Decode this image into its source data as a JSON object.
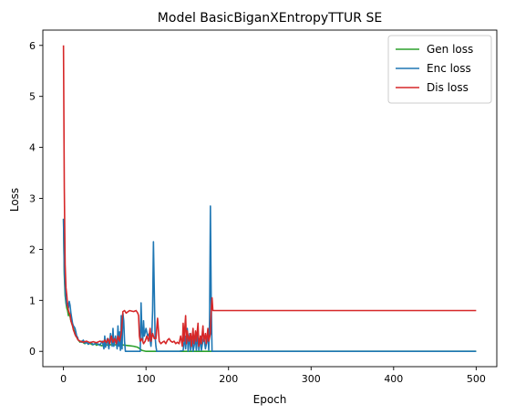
{
  "chart_data": {
    "type": "line",
    "title": "Model BasicBiganXEntropyTTUR SE",
    "xlabel": "Epoch",
    "ylabel": "Loss",
    "xlim": [
      -25,
      525
    ],
    "ylim": [
      -0.3,
      6.3
    ],
    "xticks": [
      0,
      100,
      200,
      300,
      400,
      500
    ],
    "yticks": [
      0,
      1,
      2,
      3,
      4,
      5,
      6
    ],
    "grid": false,
    "legend_position": "top-right",
    "series": [
      {
        "name": "Gen loss",
        "color": "#2ca02c",
        "points": [
          [
            0,
            2.6
          ],
          [
            1,
            1.5
          ],
          [
            2,
            1.1
          ],
          [
            3,
            0.95
          ],
          [
            4,
            0.85
          ],
          [
            5,
            0.8
          ],
          [
            6,
            0.7
          ],
          [
            7,
            0.75
          ],
          [
            8,
            0.68
          ],
          [
            9,
            0.6
          ],
          [
            10,
            0.55
          ],
          [
            11,
            0.5
          ],
          [
            12,
            0.45
          ],
          [
            13,
            0.4
          ],
          [
            14,
            0.35
          ],
          [
            15,
            0.3
          ],
          [
            16,
            0.28
          ],
          [
            17,
            0.25
          ],
          [
            18,
            0.22
          ],
          [
            19,
            0.2
          ],
          [
            20,
            0.18
          ],
          [
            22,
            0.2
          ],
          [
            24,
            0.17
          ],
          [
            26,
            0.15
          ],
          [
            28,
            0.18
          ],
          [
            30,
            0.14
          ],
          [
            32,
            0.16
          ],
          [
            35,
            0.13
          ],
          [
            38,
            0.15
          ],
          [
            40,
            0.12
          ],
          [
            43,
            0.14
          ],
          [
            46,
            0.11
          ],
          [
            50,
            0.13
          ],
          [
            55,
            0.12
          ],
          [
            60,
            0.14
          ],
          [
            65,
            0.12
          ],
          [
            70,
            0.13
          ],
          [
            75,
            0.12
          ],
          [
            80,
            0.11
          ],
          [
            85,
            0.1
          ],
          [
            90,
            0.08
          ],
          [
            95,
            0.02
          ],
          [
            100,
            0.0
          ],
          [
            110,
            0.0
          ],
          [
            120,
            0.0
          ],
          [
            130,
            0.0
          ],
          [
            140,
            0.0
          ],
          [
            150,
            0.0
          ],
          [
            160,
            0.0
          ],
          [
            170,
            0.0
          ],
          [
            180,
            0.0
          ],
          [
            250,
            0.0
          ],
          [
            350,
            0.0
          ],
          [
            450,
            0.0
          ],
          [
            500,
            0.0
          ]
        ]
      },
      {
        "name": "Enc loss",
        "color": "#1f77b4",
        "points": [
          [
            0,
            2.6
          ],
          [
            1,
            1.6
          ],
          [
            2,
            1.2
          ],
          [
            3,
            1.0
          ],
          [
            4,
            0.9
          ],
          [
            5,
            0.95
          ],
          [
            6,
            0.85
          ],
          [
            7,
            0.98
          ],
          [
            8,
            0.9
          ],
          [
            9,
            0.75
          ],
          [
            10,
            0.65
          ],
          [
            11,
            0.55
          ],
          [
            12,
            0.5
          ],
          [
            13,
            0.48
          ],
          [
            14,
            0.45
          ],
          [
            15,
            0.38
          ],
          [
            16,
            0.3
          ],
          [
            17,
            0.28
          ],
          [
            18,
            0.22
          ],
          [
            20,
            0.2
          ],
          [
            22,
            0.18
          ],
          [
            24,
            0.22
          ],
          [
            26,
            0.16
          ],
          [
            28,
            0.18
          ],
          [
            30,
            0.14
          ],
          [
            33,
            0.18
          ],
          [
            36,
            0.13
          ],
          [
            40,
            0.16
          ],
          [
            44,
            0.12
          ],
          [
            47,
            0.2
          ],
          [
            49,
            0.05
          ],
          [
            50,
            0.3
          ],
          [
            51,
            0.08
          ],
          [
            53,
            0.25
          ],
          [
            55,
            0.05
          ],
          [
            57,
            0.35
          ],
          [
            59,
            0.1
          ],
          [
            60,
            0.45
          ],
          [
            61,
            0.1
          ],
          [
            63,
            0.3
          ],
          [
            65,
            0.05
          ],
          [
            66,
            0.5
          ],
          [
            67,
            0.1
          ],
          [
            68,
            0.38
          ],
          [
            69,
            0.02
          ],
          [
            70,
            0.7
          ],
          [
            71,
            0.05
          ],
          [
            72,
            0.75
          ],
          [
            73,
            0.6
          ],
          [
            74,
            0.2
          ],
          [
            75,
            0.0
          ],
          [
            80,
            0.0
          ],
          [
            85,
            0.0
          ],
          [
            90,
            0.0
          ],
          [
            93,
            0.0
          ],
          [
            94,
            0.95
          ],
          [
            95,
            0.4
          ],
          [
            96,
            0.2
          ],
          [
            97,
            0.6
          ],
          [
            98,
            0.3
          ],
          [
            100,
            0.45
          ],
          [
            102,
            0.3
          ],
          [
            104,
            0.35
          ],
          [
            106,
            0.1
          ],
          [
            107,
            0.3
          ],
          [
            108,
            0.8
          ],
          [
            109,
            2.15
          ],
          [
            110,
            1.2
          ],
          [
            111,
            0.3
          ],
          [
            112,
            0.1
          ],
          [
            113,
            0.0
          ],
          [
            120,
            0.0
          ],
          [
            130,
            0.0
          ],
          [
            140,
            0.0
          ],
          [
            145,
            0.02
          ],
          [
            147,
            0.3
          ],
          [
            148,
            0.05
          ],
          [
            150,
            0.45
          ],
          [
            151,
            0.0
          ],
          [
            153,
            0.35
          ],
          [
            154,
            0.02
          ],
          [
            156,
            0.3
          ],
          [
            157,
            0.0
          ],
          [
            160,
            0.25
          ],
          [
            161,
            0.02
          ],
          [
            163,
            0.35
          ],
          [
            164,
            0.02
          ],
          [
            166,
            0.3
          ],
          [
            167,
            0.02
          ],
          [
            170,
            0.3
          ],
          [
            172,
            0.05
          ],
          [
            175,
            0.3
          ],
          [
            176,
            0.02
          ],
          [
            177,
            0.6
          ],
          [
            178,
            2.85
          ],
          [
            179,
            1.0
          ],
          [
            180,
            0.0
          ],
          [
            200,
            0.0
          ],
          [
            300,
            0.0
          ],
          [
            400,
            0.0
          ],
          [
            500,
            0.0
          ]
        ]
      },
      {
        "name": "Dis loss",
        "color": "#d62728",
        "points": [
          [
            0,
            6.0
          ],
          [
            1,
            3.2
          ],
          [
            2,
            1.7
          ],
          [
            3,
            1.25
          ],
          [
            4,
            1.1
          ],
          [
            5,
            0.9
          ],
          [
            6,
            0.8
          ],
          [
            7,
            0.75
          ],
          [
            8,
            0.72
          ],
          [
            9,
            0.6
          ],
          [
            10,
            0.55
          ],
          [
            11,
            0.5
          ],
          [
            12,
            0.42
          ],
          [
            13,
            0.38
          ],
          [
            14,
            0.33
          ],
          [
            15,
            0.3
          ],
          [
            16,
            0.28
          ],
          [
            17,
            0.24
          ],
          [
            18,
            0.22
          ],
          [
            20,
            0.2
          ],
          [
            24,
            0.18
          ],
          [
            28,
            0.2
          ],
          [
            32,
            0.17
          ],
          [
            36,
            0.19
          ],
          [
            40,
            0.17
          ],
          [
            44,
            0.2
          ],
          [
            48,
            0.18
          ],
          [
            50,
            0.22
          ],
          [
            52,
            0.17
          ],
          [
            54,
            0.25
          ],
          [
            56,
            0.15
          ],
          [
            58,
            0.3
          ],
          [
            60,
            0.18
          ],
          [
            62,
            0.25
          ],
          [
            64,
            0.15
          ],
          [
            66,
            0.3
          ],
          [
            68,
            0.2
          ],
          [
            70,
            0.35
          ],
          [
            72,
            0.78
          ],
          [
            74,
            0.8
          ],
          [
            76,
            0.75
          ],
          [
            80,
            0.8
          ],
          [
            85,
            0.78
          ],
          [
            88,
            0.8
          ],
          [
            90,
            0.75
          ],
          [
            91,
            0.7
          ],
          [
            92,
            0.3
          ],
          [
            93,
            0.2
          ],
          [
            95,
            0.25
          ],
          [
            97,
            0.15
          ],
          [
            99,
            0.2
          ],
          [
            101,
            0.3
          ],
          [
            103,
            0.2
          ],
          [
            105,
            0.45
          ],
          [
            106,
            0.2
          ],
          [
            108,
            0.35
          ],
          [
            110,
            0.25
          ],
          [
            112,
            0.25
          ],
          [
            114,
            0.65
          ],
          [
            116,
            0.2
          ],
          [
            118,
            0.15
          ],
          [
            120,
            0.18
          ],
          [
            122,
            0.2
          ],
          [
            124,
            0.15
          ],
          [
            126,
            0.22
          ],
          [
            128,
            0.25
          ],
          [
            130,
            0.2
          ],
          [
            132,
            0.18
          ],
          [
            134,
            0.2
          ],
          [
            136,
            0.15
          ],
          [
            138,
            0.18
          ],
          [
            140,
            0.15
          ],
          [
            142,
            0.3
          ],
          [
            144,
            0.1
          ],
          [
            145,
            0.55
          ],
          [
            146,
            0.2
          ],
          [
            148,
            0.7
          ],
          [
            149,
            0.15
          ],
          [
            150,
            0.4
          ],
          [
            152,
            0.2
          ],
          [
            154,
            0.35
          ],
          [
            155,
            0.1
          ],
          [
            157,
            0.45
          ],
          [
            158,
            0.15
          ],
          [
            160,
            0.4
          ],
          [
            161,
            0.2
          ],
          [
            163,
            0.55
          ],
          [
            164,
            0.1
          ],
          [
            166,
            0.3
          ],
          [
            167,
            0.15
          ],
          [
            169,
            0.5
          ],
          [
            170,
            0.2
          ],
          [
            172,
            0.35
          ],
          [
            173,
            0.15
          ],
          [
            175,
            0.45
          ],
          [
            176,
            0.2
          ],
          [
            178,
            0.35
          ],
          [
            179,
            0.8
          ],
          [
            180,
            1.05
          ],
          [
            181,
            0.8
          ],
          [
            200,
            0.8
          ],
          [
            250,
            0.8
          ],
          [
            300,
            0.8
          ],
          [
            350,
            0.8
          ],
          [
            400,
            0.8
          ],
          [
            450,
            0.8
          ],
          [
            500,
            0.8
          ]
        ]
      }
    ]
  }
}
